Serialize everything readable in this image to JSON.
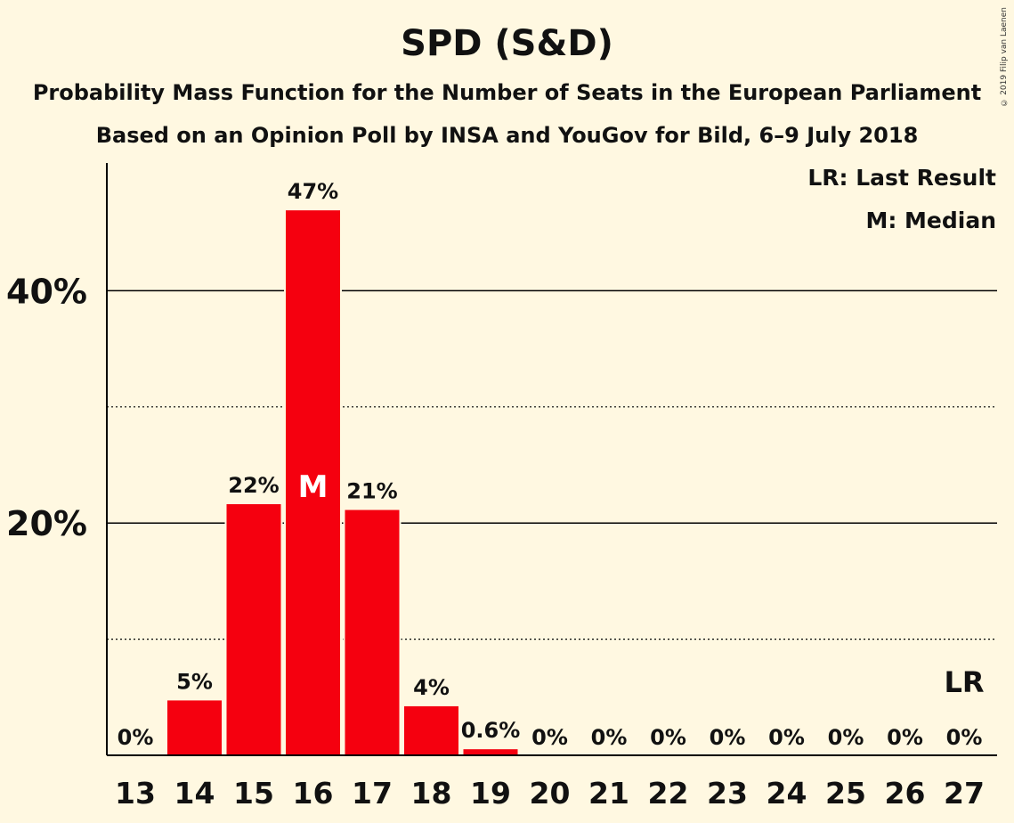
{
  "title": "SPD (S&D)",
  "subtitle": "Probability Mass Function for the Number of Seats in the European Parliament",
  "subtitle2": "Based on an Opinion Poll by INSA and YouGov for Bild, 6–9 July 2018",
  "copyright": "© 2019 Filip van Laenen",
  "legend": {
    "last_result": "LR: Last Result",
    "median": "M: Median"
  },
  "colors": {
    "bar": "#F5000F",
    "background": "#FFF8E1"
  },
  "chart_data": {
    "type": "bar",
    "categories": [
      "13",
      "14",
      "15",
      "16",
      "17",
      "18",
      "19",
      "20",
      "21",
      "22",
      "23",
      "24",
      "25",
      "26",
      "27"
    ],
    "values": [
      0,
      4.8,
      21.7,
      47.0,
      21.2,
      4.3,
      0.6,
      0,
      0,
      0,
      0,
      0,
      0,
      0,
      0
    ],
    "data_labels": [
      "0%",
      "5%",
      "22%",
      "47%",
      "21%",
      "4%",
      "0.6%",
      "0%",
      "0%",
      "0%",
      "0%",
      "0%",
      "0%",
      "0%",
      "0%"
    ],
    "ylim": [
      0,
      51
    ],
    "yticks": [
      {
        "value": 20,
        "label": "20%",
        "style": "solid"
      },
      {
        "value": 40,
        "label": "40%",
        "style": "solid"
      }
    ],
    "minor_gridlines": [
      10,
      30
    ],
    "median": {
      "category": "16",
      "label": "M"
    },
    "last_result": {
      "category": "27",
      "label": "LR"
    }
  }
}
